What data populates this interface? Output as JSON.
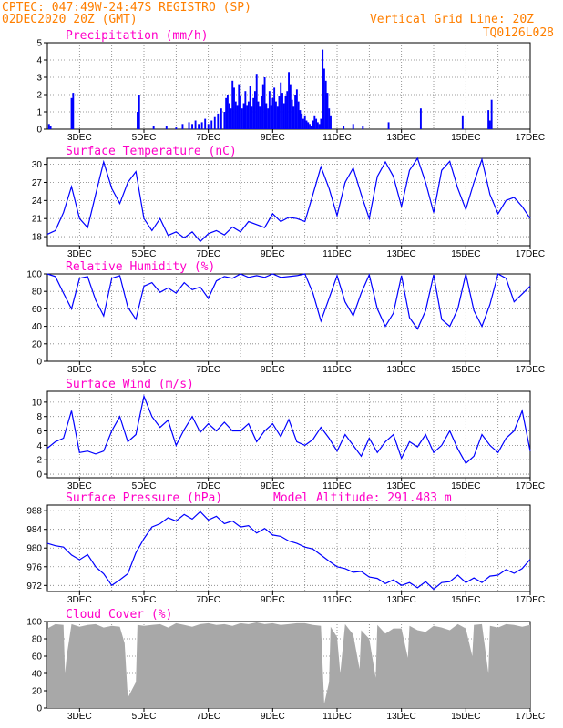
{
  "header": {
    "line1": "CPTEC:  047:49W-24:47S  REGISTRO (SP)",
    "line2": "02DEC2020 20Z (GMT)",
    "grid_note": "Vertical Grid Line: 20Z",
    "run_code": "TQ0126L028"
  },
  "colors": {
    "series": "#0000ff",
    "cloud": "#a8a8a8",
    "header": "#ff7f00",
    "title": "#ff00c8",
    "grid": "#7f7f7f"
  },
  "chart_data": [
    {
      "type": "bar",
      "title": "Precipitation (mm/h)",
      "xlabel": "",
      "ylabel": "",
      "x_range_days": [
        2.0,
        17.0
      ],
      "x_tick_labels": [
        "3DEC",
        "5DEC",
        "7DEC",
        "9DEC",
        "11DEC",
        "13DEC",
        "15DEC",
        "17DEC"
      ],
      "ylim": [
        0,
        5
      ],
      "y_ticks": [
        0,
        1,
        2,
        3,
        4,
        5
      ],
      "grid": true,
      "x": [
        2.05,
        2.1,
        2.75,
        2.8,
        4.8,
        4.85,
        5.3,
        5.7,
        6.0,
        6.2,
        6.4,
        6.5,
        6.6,
        6.7,
        6.8,
        6.9,
        7.0,
        7.1,
        7.2,
        7.3,
        7.4,
        7.5,
        7.55,
        7.6,
        7.65,
        7.7,
        7.75,
        7.8,
        7.85,
        7.9,
        7.95,
        8.0,
        8.05,
        8.1,
        8.15,
        8.2,
        8.25,
        8.3,
        8.35,
        8.4,
        8.45,
        8.5,
        8.55,
        8.6,
        8.65,
        8.7,
        8.75,
        8.8,
        8.85,
        8.9,
        8.95,
        9.0,
        9.05,
        9.1,
        9.15,
        9.2,
        9.25,
        9.3,
        9.35,
        9.4,
        9.45,
        9.5,
        9.55,
        9.6,
        9.65,
        9.7,
        9.75,
        9.8,
        9.85,
        9.9,
        9.95,
        10.0,
        10.05,
        10.1,
        10.15,
        10.2,
        10.25,
        10.3,
        10.35,
        10.4,
        10.45,
        10.5,
        10.55,
        10.6,
        10.65,
        10.7,
        10.75,
        10.8,
        11.2,
        11.5,
        11.8,
        12.6,
        13.6,
        14.9,
        15.7,
        15.75,
        15.8
      ],
      "values": [
        0.3,
        0.2,
        1.8,
        2.1,
        1.0,
        2.0,
        0.2,
        0.2,
        0.1,
        0.3,
        0.4,
        0.3,
        0.5,
        0.3,
        0.4,
        0.6,
        0.3,
        0.5,
        0.7,
        0.9,
        1.2,
        1.0,
        1.8,
        2.0,
        1.5,
        1.2,
        2.8,
        2.4,
        1.6,
        1.4,
        2.6,
        1.9,
        1.2,
        1.5,
        2.2,
        1.4,
        1.6,
        2.5,
        1.3,
        1.8,
        2.2,
        3.2,
        1.6,
        1.3,
        1.9,
        2.6,
        3.0,
        1.5,
        1.2,
        2.2,
        1.4,
        1.8,
        2.4,
        1.6,
        1.3,
        1.9,
        2.7,
        2.1,
        1.5,
        1.9,
        2.2,
        3.3,
        2.6,
        1.7,
        1.3,
        2.0,
        2.3,
        1.6,
        1.1,
        0.9,
        0.6,
        0.8,
        0.5,
        0.4,
        0.3,
        0.2,
        0.5,
        0.8,
        0.6,
        0.4,
        0.3,
        0.6,
        4.6,
        3.5,
        2.8,
        2.1,
        1.2,
        0.8,
        0.2,
        0.3,
        0.2,
        0.4,
        1.2,
        0.8,
        1.1,
        0.5,
        1.7
      ]
    },
    {
      "type": "line",
      "title": "Surface Temperature (nC)",
      "xlabel": "",
      "ylabel": "",
      "x_range_days": [
        2.0,
        17.0
      ],
      "x_tick_labels": [
        "3DEC",
        "5DEC",
        "7DEC",
        "9DEC",
        "11DEC",
        "13DEC",
        "15DEC",
        "17DEC"
      ],
      "ylim": [
        16.5,
        31
      ],
      "y_ticks": [
        18,
        21,
        24,
        27,
        30
      ],
      "grid": true,
      "x": [
        2.0,
        2.25,
        2.5,
        2.75,
        3.0,
        3.25,
        3.5,
        3.75,
        4.0,
        4.25,
        4.5,
        4.75,
        5.0,
        5.25,
        5.5,
        5.75,
        6.0,
        6.25,
        6.5,
        6.75,
        7.0,
        7.25,
        7.5,
        7.75,
        8.0,
        8.25,
        8.5,
        8.75,
        9.0,
        9.25,
        9.5,
        9.75,
        10.0,
        10.25,
        10.5,
        10.75,
        11.0,
        11.25,
        11.5,
        11.75,
        12.0,
        12.25,
        12.5,
        12.75,
        13.0,
        13.25,
        13.5,
        13.75,
        14.0,
        14.25,
        14.5,
        14.75,
        15.0,
        15.25,
        15.5,
        15.75,
        16.0,
        16.25,
        16.5,
        16.75,
        17.0
      ],
      "values": [
        18.4,
        19.0,
        22.0,
        26.3,
        21.0,
        19.5,
        25.0,
        30.4,
        26.0,
        23.5,
        27.0,
        28.8,
        21.0,
        19.0,
        21.0,
        18.2,
        18.8,
        17.8,
        18.8,
        17.2,
        18.5,
        19.0,
        18.3,
        19.6,
        18.8,
        20.5,
        20.0,
        19.5,
        21.8,
        20.5,
        21.2,
        21.0,
        20.5,
        25.0,
        29.6,
        26.0,
        21.5,
        27.0,
        29.4,
        25.0,
        21.0,
        28.0,
        30.4,
        28.0,
        23.0,
        29.0,
        31.0,
        27.0,
        22.0,
        29.0,
        30.5,
        26.0,
        22.5,
        27.0,
        30.8,
        25.0,
        21.8,
        24.0,
        24.5,
        23.0,
        21.0
      ]
    },
    {
      "type": "line",
      "title": "Relative Humidity (%)",
      "xlabel": "",
      "ylabel": "",
      "x_range_days": [
        2.0,
        17.0
      ],
      "x_tick_labels": [
        "3DEC",
        "5DEC",
        "7DEC",
        "9DEC",
        "11DEC",
        "13DEC",
        "15DEC",
        "17DEC"
      ],
      "ylim": [
        0,
        100
      ],
      "y_ticks": [
        0,
        20,
        40,
        60,
        80,
        100
      ],
      "grid": true,
      "x": [
        2.0,
        2.25,
        2.5,
        2.75,
        3.0,
        3.25,
        3.5,
        3.75,
        4.0,
        4.25,
        4.5,
        4.75,
        5.0,
        5.25,
        5.5,
        5.75,
        6.0,
        6.25,
        6.5,
        6.75,
        7.0,
        7.25,
        7.5,
        7.75,
        8.0,
        8.25,
        8.5,
        8.75,
        9.0,
        9.25,
        9.5,
        9.75,
        10.0,
        10.25,
        10.5,
        10.75,
        11.0,
        11.25,
        11.5,
        11.75,
        12.0,
        12.25,
        12.5,
        12.75,
        13.0,
        13.25,
        13.5,
        13.75,
        14.0,
        14.25,
        14.5,
        14.75,
        15.0,
        15.25,
        15.5,
        15.75,
        16.0,
        16.25,
        16.5,
        16.75,
        17.0
      ],
      "values": [
        100,
        97,
        78,
        60,
        95,
        97,
        70,
        52,
        95,
        98,
        62,
        48,
        86,
        90,
        79,
        84,
        78,
        90,
        82,
        85,
        72,
        92,
        97,
        95,
        100,
        96,
        98,
        96,
        100,
        96,
        97,
        98,
        100,
        78,
        46,
        72,
        98,
        68,
        52,
        78,
        99,
        60,
        40,
        55,
        98,
        50,
        37,
        58,
        99,
        48,
        40,
        60,
        100,
        58,
        40,
        65,
        100,
        95,
        68,
        77,
        86
      ]
    },
    {
      "type": "line",
      "title": "Surface Wind (m/s)",
      "xlabel": "",
      "ylabel": "",
      "x_range_days": [
        2.0,
        17.0
      ],
      "x_tick_labels": [
        "3DEC",
        "5DEC",
        "7DEC",
        "9DEC",
        "11DEC",
        "13DEC",
        "15DEC",
        "17DEC"
      ],
      "ylim": [
        -0.5,
        11.5
      ],
      "y_ticks": [
        0,
        2,
        4,
        6,
        8,
        10
      ],
      "grid": true,
      "x": [
        2.0,
        2.25,
        2.5,
        2.75,
        3.0,
        3.25,
        3.5,
        3.75,
        4.0,
        4.25,
        4.5,
        4.75,
        5.0,
        5.25,
        5.5,
        5.75,
        6.0,
        6.25,
        6.5,
        6.75,
        7.0,
        7.25,
        7.5,
        7.75,
        8.0,
        8.25,
        8.5,
        8.75,
        9.0,
        9.25,
        9.5,
        9.75,
        10.0,
        10.25,
        10.5,
        10.75,
        11.0,
        11.25,
        11.5,
        11.75,
        12.0,
        12.25,
        12.5,
        12.75,
        13.0,
        13.25,
        13.5,
        13.75,
        14.0,
        14.25,
        14.5,
        14.75,
        15.0,
        15.25,
        15.5,
        15.75,
        16.0,
        16.25,
        16.5,
        16.75,
        17.0
      ],
      "values": [
        3.6,
        4.5,
        5.0,
        8.8,
        3.0,
        3.2,
        2.8,
        3.2,
        6.0,
        8.0,
        4.5,
        5.5,
        10.8,
        8.0,
        6.5,
        7.5,
        4.0,
        6.2,
        8.0,
        5.8,
        7.0,
        6.0,
        7.2,
        6.0,
        6.0,
        7.0,
        4.5,
        6.0,
        7.0,
        5.2,
        7.6,
        4.5,
        4.0,
        4.8,
        6.5,
        5.0,
        3.2,
        5.5,
        4.0,
        2.5,
        5.0,
        3.0,
        4.5,
        5.5,
        2.2,
        4.5,
        3.8,
        5.5,
        3.0,
        4.0,
        6.0,
        3.5,
        1.5,
        2.5,
        5.5,
        4.0,
        3.0,
        5.0,
        6.0,
        8.8,
        3.2
      ]
    },
    {
      "type": "line",
      "title": "Surface Pressure (hPa)",
      "annotation": "Model Altitude: 291.483 m",
      "xlabel": "",
      "ylabel": "",
      "x_range_days": [
        2.0,
        17.0
      ],
      "x_tick_labels": [
        "3DEC",
        "5DEC",
        "7DEC",
        "9DEC",
        "11DEC",
        "13DEC",
        "15DEC",
        "17DEC"
      ],
      "ylim": [
        970.7,
        989.2
      ],
      "y_ticks": [
        972,
        976,
        980,
        984,
        988
      ],
      "grid": true,
      "x": [
        2.0,
        2.25,
        2.5,
        2.75,
        3.0,
        3.25,
        3.5,
        3.75,
        4.0,
        4.25,
        4.5,
        4.75,
        5.0,
        5.25,
        5.5,
        5.75,
        6.0,
        6.25,
        6.5,
        6.75,
        7.0,
        7.25,
        7.5,
        7.75,
        8.0,
        8.25,
        8.5,
        8.75,
        9.0,
        9.25,
        9.5,
        9.75,
        10.0,
        10.25,
        10.5,
        10.75,
        11.0,
        11.25,
        11.5,
        11.75,
        12.0,
        12.25,
        12.5,
        12.75,
        13.0,
        13.25,
        13.5,
        13.75,
        14.0,
        14.25,
        14.5,
        14.75,
        15.0,
        15.25,
        15.5,
        15.75,
        16.0,
        16.25,
        16.5,
        16.75,
        17.0
      ],
      "values": [
        981.0,
        980.5,
        980.2,
        978.5,
        977.5,
        978.6,
        976.0,
        974.5,
        972.0,
        973.2,
        974.5,
        979.0,
        982.0,
        984.5,
        985.2,
        986.5,
        985.8,
        987.2,
        986.2,
        987.8,
        986.0,
        986.8,
        985.2,
        985.8,
        984.5,
        984.8,
        983.2,
        984.2,
        982.8,
        982.5,
        981.5,
        981.0,
        980.2,
        979.8,
        978.5,
        977.2,
        976.0,
        975.6,
        974.8,
        975.0,
        973.8,
        973.5,
        972.4,
        973.2,
        972.0,
        972.6,
        971.5,
        972.8,
        971.2,
        972.6,
        972.8,
        974.2,
        972.6,
        973.6,
        972.6,
        974.0,
        974.2,
        975.4,
        974.6,
        975.6,
        977.6
      ]
    },
    {
      "type": "area",
      "title": "Cloud Cover (%)",
      "xlabel": "",
      "ylabel": "",
      "x_range_days": [
        2.0,
        17.0
      ],
      "x_tick_labels": [
        "3DEC",
        "5DEC",
        "7DEC",
        "9DEC",
        "11DEC",
        "13DEC",
        "15DEC",
        "17DEC"
      ],
      "ylim": [
        0,
        100
      ],
      "y_ticks": [
        0,
        20,
        40,
        60,
        80,
        100
      ],
      "grid": true,
      "x": [
        2.0,
        2.25,
        2.5,
        2.55,
        2.6,
        2.75,
        3.0,
        3.25,
        3.5,
        3.75,
        4.0,
        4.25,
        4.4,
        4.5,
        4.75,
        4.8,
        5.0,
        5.25,
        5.5,
        5.75,
        6.0,
        6.25,
        6.5,
        6.75,
        7.0,
        7.25,
        7.5,
        7.75,
        8.0,
        8.25,
        8.5,
        8.75,
        9.0,
        9.25,
        9.5,
        9.75,
        10.0,
        10.25,
        10.5,
        10.6,
        10.75,
        10.8,
        11.0,
        11.1,
        11.25,
        11.5,
        11.7,
        11.75,
        12.0,
        12.2,
        12.25,
        12.5,
        12.75,
        13.0,
        13.2,
        13.25,
        13.5,
        13.75,
        14.0,
        14.25,
        14.5,
        14.75,
        15.0,
        15.2,
        15.25,
        15.5,
        15.7,
        15.75,
        16.0,
        16.25,
        16.5,
        16.75,
        17.0
      ],
      "values": [
        92,
        97,
        96,
        40,
        60,
        97,
        94,
        96,
        97,
        93,
        95,
        94,
        75,
        12,
        30,
        96,
        95,
        96,
        97,
        93,
        98,
        96,
        94,
        97,
        98,
        96,
        97,
        95,
        98,
        97,
        99,
        97,
        98,
        96,
        97,
        98,
        98,
        96,
        95,
        5,
        30,
        94,
        82,
        40,
        97,
        85,
        45,
        90,
        80,
        35,
        96,
        86,
        92,
        92,
        58,
        95,
        90,
        88,
        95,
        93,
        90,
        97,
        92,
        60,
        96,
        97,
        40,
        95,
        93,
        97,
        96,
        94,
        96
      ]
    }
  ]
}
